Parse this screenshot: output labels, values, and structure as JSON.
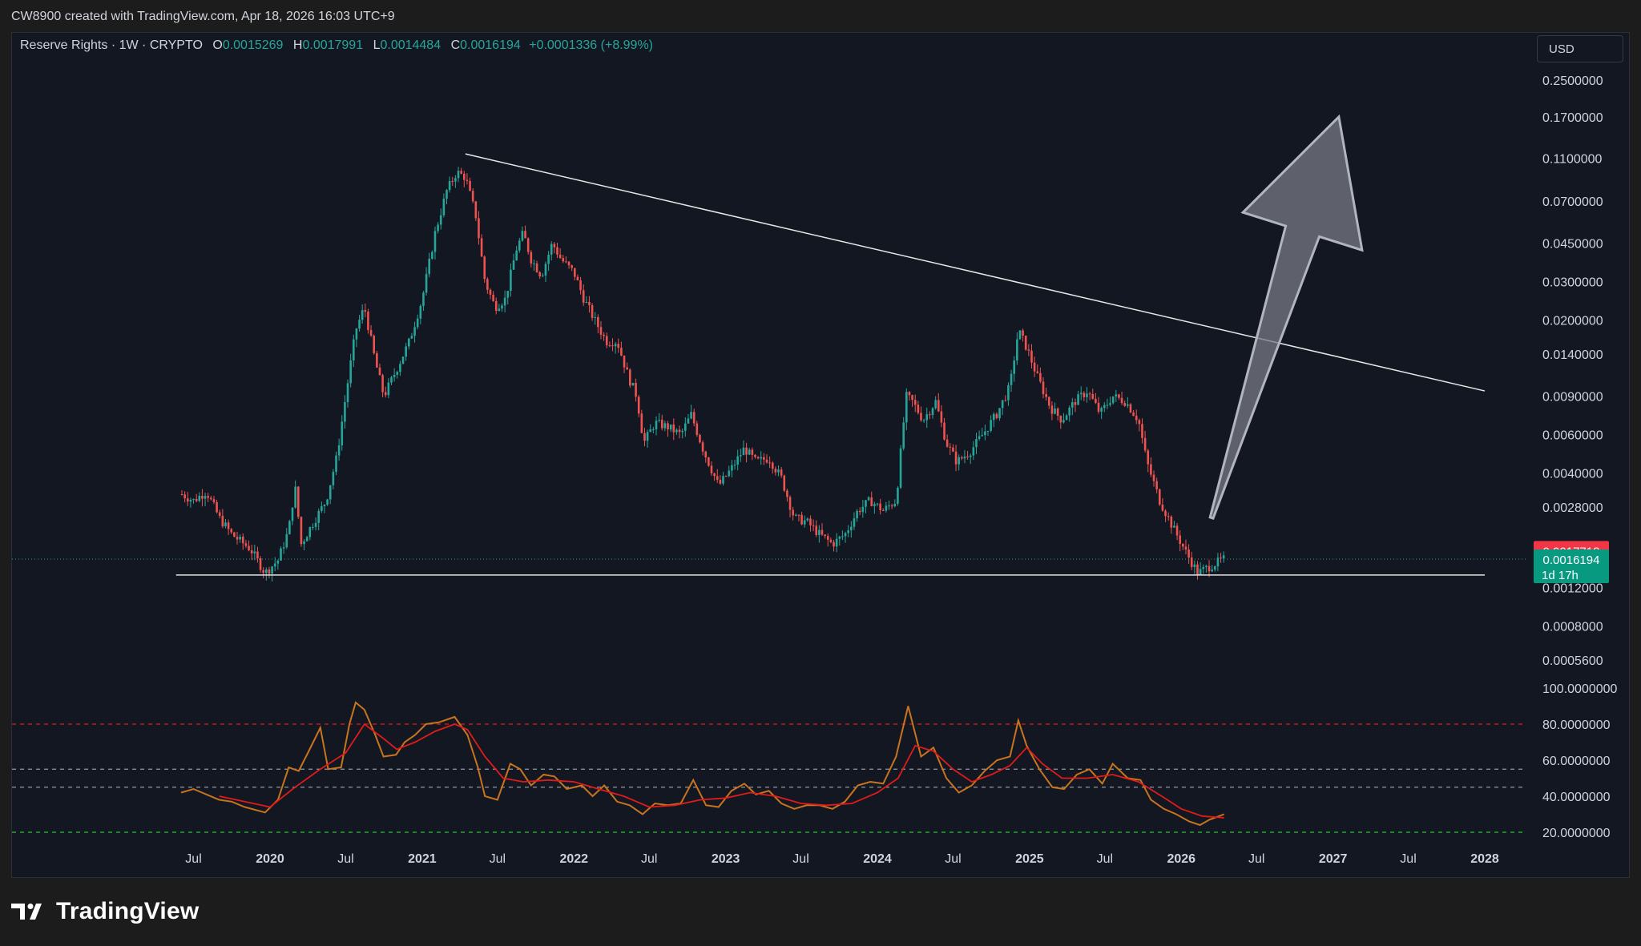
{
  "header": {
    "attribution": "CW8900 created with TradingView.com, Apr 18, 2026 16:03 UTC+9"
  },
  "legend": {
    "symbol": "Reserve Rights · 1W · CRYPTO",
    "o_label": "O",
    "o_value": "0.0015269",
    "h_label": "H",
    "h_value": "0.0017991",
    "l_label": "L",
    "l_value": "0.0014484",
    "c_label": "C",
    "c_value": "0.0016194",
    "change": "+0.0001336 (+8.99%)"
  },
  "currency_button": "USD",
  "footer": {
    "brand": "TradingView"
  },
  "colors": {
    "up": "#26a69a",
    "down": "#ef5350",
    "background": "#131722",
    "rsi": "#c8741e",
    "rsi_ma": "#e01b1b",
    "grid": "#2a2e39",
    "price_tag_red": "#f23645",
    "price_tag_green": "#089981"
  },
  "chart_data": [
    {
      "type": "candlestick",
      "title": "Reserve Rights · 1W · CRYPTO",
      "scale": "log",
      "x_range": [
        "2019-05",
        "2028-03"
      ],
      "ylim": [
        0.00045,
        0.3
      ],
      "x_tick_labels": [
        "Jul",
        "2020",
        "Jul",
        "2021",
        "Jul",
        "2022",
        "Jul",
        "2023",
        "Jul",
        "2024",
        "Jul",
        "2025",
        "Jul",
        "2026",
        "Jul",
        "2027",
        "Jul",
        "2028"
      ],
      "x_tick_dates": [
        "2019-07",
        "2020-01",
        "2020-07",
        "2021-01",
        "2021-07",
        "2022-01",
        "2022-07",
        "2023-01",
        "2023-07",
        "2024-01",
        "2024-07",
        "2025-01",
        "2025-07",
        "2026-01",
        "2026-07",
        "2027-01",
        "2027-07",
        "2028-01"
      ],
      "y_tick_labels": [
        "0.2500000",
        "0.1700000",
        "0.1100000",
        "0.0700000",
        "0.0450000",
        "0.0300000",
        "0.0200000",
        "0.0140000",
        "0.0090000",
        "0.0060000",
        "0.0040000",
        "0.0028000",
        "0.0012000",
        "0.0008000",
        "0.0005600"
      ],
      "y_tick_values": [
        0.25,
        0.17,
        0.11,
        0.07,
        0.045,
        0.03,
        0.02,
        0.014,
        0.009,
        0.006,
        0.004,
        0.0028,
        0.0012,
        0.0008,
        0.00056
      ],
      "price_anchor_points": [
        [
          "2019-06-03",
          0.0032
        ],
        [
          "2019-07-01",
          0.003
        ],
        [
          "2019-08-01",
          0.0033
        ],
        [
          "2019-09-01",
          0.0025
        ],
        [
          "2019-10-01",
          0.0021
        ],
        [
          "2019-11-15",
          0.0018
        ],
        [
          "2019-12-20",
          0.0014
        ],
        [
          "2020-01-20",
          0.0016
        ],
        [
          "2020-02-15",
          0.0022
        ],
        [
          "2020-03-01",
          0.0035
        ],
        [
          "2020-03-16",
          0.0019
        ],
        [
          "2020-04-15",
          0.0024
        ],
        [
          "2020-05-15",
          0.003
        ],
        [
          "2020-06-10",
          0.0048
        ],
        [
          "2020-07-01",
          0.009
        ],
        [
          "2020-07-25",
          0.018
        ],
        [
          "2020-08-15",
          0.023
        ],
        [
          "2020-09-10",
          0.013
        ],
        [
          "2020-10-01",
          0.009
        ],
        [
          "2020-11-01",
          0.012
        ],
        [
          "2020-12-01",
          0.016
        ],
        [
          "2021-01-01",
          0.025
        ],
        [
          "2021-02-01",
          0.05
        ],
        [
          "2021-03-01",
          0.078
        ],
        [
          "2021-03-25",
          0.095
        ],
        [
          "2021-04-15",
          0.09
        ],
        [
          "2021-05-10",
          0.06
        ],
        [
          "2021-06-01",
          0.03
        ],
        [
          "2021-06-25",
          0.023
        ],
        [
          "2021-07-20",
          0.025
        ],
        [
          "2021-08-15",
          0.042
        ],
        [
          "2021-09-01",
          0.05
        ],
        [
          "2021-09-20",
          0.038
        ],
        [
          "2021-10-15",
          0.032
        ],
        [
          "2021-11-10",
          0.045
        ],
        [
          "2021-12-01",
          0.038
        ],
        [
          "2022-01-01",
          0.033
        ],
        [
          "2022-01-25",
          0.025
        ],
        [
          "2022-02-20",
          0.02
        ],
        [
          "2022-03-20",
          0.016
        ],
        [
          "2022-04-15",
          0.016
        ],
        [
          "2022-05-12",
          0.011
        ],
        [
          "2022-06-01",
          0.009
        ],
        [
          "2022-06-18",
          0.0055
        ],
        [
          "2022-07-15",
          0.0068
        ],
        [
          "2022-08-15",
          0.0065
        ],
        [
          "2022-09-15",
          0.006
        ],
        [
          "2022-10-10",
          0.0074
        ],
        [
          "2022-11-10",
          0.005
        ],
        [
          "2022-12-15",
          0.0035
        ],
        [
          "2023-01-15",
          0.0042
        ],
        [
          "2023-02-15",
          0.0052
        ],
        [
          "2023-03-15",
          0.0045
        ],
        [
          "2023-04-15",
          0.0047
        ],
        [
          "2023-05-15",
          0.0038
        ],
        [
          "2023-06-15",
          0.0025
        ],
        [
          "2023-07-15",
          0.0024
        ],
        [
          "2023-08-15",
          0.0021
        ],
        [
          "2023-09-15",
          0.0019
        ],
        [
          "2023-10-15",
          0.0021
        ],
        [
          "2023-11-15",
          0.0027
        ],
        [
          "2023-12-15",
          0.003
        ],
        [
          "2024-01-15",
          0.0027
        ],
        [
          "2024-02-15",
          0.003
        ],
        [
          "2024-03-10",
          0.009
        ],
        [
          "2024-03-25",
          0.0085
        ],
        [
          "2024-04-20",
          0.007
        ],
        [
          "2024-05-20",
          0.0085
        ],
        [
          "2024-06-15",
          0.0055
        ],
        [
          "2024-07-10",
          0.0045
        ],
        [
          "2024-08-10",
          0.005
        ],
        [
          "2024-09-10",
          0.006
        ],
        [
          "2024-10-15",
          0.0075
        ],
        [
          "2024-11-15",
          0.01
        ],
        [
          "2024-12-05",
          0.018
        ],
        [
          "2024-12-25",
          0.015
        ],
        [
          "2025-01-20",
          0.011
        ],
        [
          "2025-02-20",
          0.008
        ],
        [
          "2025-03-20",
          0.007
        ],
        [
          "2025-04-20",
          0.0085
        ],
        [
          "2025-05-20",
          0.0095
        ],
        [
          "2025-06-20",
          0.0075
        ],
        [
          "2025-07-20",
          0.009
        ],
        [
          "2025-08-20",
          0.0085
        ],
        [
          "2025-09-20",
          0.007
        ],
        [
          "2025-10-10",
          0.0045
        ],
        [
          "2025-11-10",
          0.003
        ],
        [
          "2025-12-10",
          0.0023
        ],
        [
          "2026-01-15",
          0.0017
        ],
        [
          "2026-02-10",
          0.0014
        ],
        [
          "2026-03-10",
          0.0015
        ],
        [
          "2026-04-14",
          0.0016194
        ]
      ],
      "drawn_lines": {
        "resistance_trendline": [
          [
            "2021-04-15",
            0.115
          ],
          [
            "2028-01-01",
            0.0095
          ]
        ],
        "support_line": [
          [
            "2019-05-20",
            0.00137
          ],
          [
            "2028-01-01",
            0.00137
          ]
        ]
      },
      "arrow_projection": {
        "from": [
          "2026-03-15",
          0.0025
        ],
        "to": [
          "2027-01-15",
          0.17
        ]
      },
      "price_labels": [
        {
          "value": "0.0017718",
          "color": "#f23645"
        },
        {
          "value": "0.0016194",
          "subtext": "1d 17h",
          "color": "#089981"
        }
      ]
    },
    {
      "type": "line",
      "title": "RSI",
      "ylim": [
        18,
        100
      ],
      "y_tick_labels": [
        "100.0000000",
        "80.0000000",
        "60.0000000",
        "40.0000000",
        "20.0000000"
      ],
      "y_tick_values": [
        100,
        80,
        60,
        40,
        20
      ],
      "reference_lines": [
        {
          "value": 80,
          "color": "#e01b1b"
        },
        {
          "value": 55,
          "color": "#9598a1"
        },
        {
          "value": 45,
          "color": "#9598a1"
        },
        {
          "value": 20,
          "color": "#2cc13a"
        }
      ],
      "series": [
        {
          "color": "#c8741e",
          "points": [
            [
              "2019-06-01",
              42
            ],
            [
              "2019-07-01",
              44
            ],
            [
              "2019-08-01",
              41
            ],
            [
              "2019-09-01",
              38
            ],
            [
              "2019-10-01",
              37
            ],
            [
              "2019-11-01",
              34
            ],
            [
              "2019-12-20",
              31
            ],
            [
              "2020-01-20",
              38
            ],
            [
              "2020-02-15",
              56
            ],
            [
              "2020-03-10",
              54
            ],
            [
              "2020-04-01",
              64
            ],
            [
              "2020-05-01",
              78
            ],
            [
              "2020-05-20",
              55
            ],
            [
              "2020-06-20",
              56
            ],
            [
              "2020-07-10",
              80
            ],
            [
              "2020-07-25",
              92
            ],
            [
              "2020-08-15",
              88
            ],
            [
              "2020-09-10",
              74
            ],
            [
              "2020-09-30",
              62
            ],
            [
              "2020-10-30",
              63
            ],
            [
              "2020-11-20",
              70
            ],
            [
              "2020-12-15",
              74
            ],
            [
              "2021-01-10",
              80
            ],
            [
              "2021-02-10",
              81
            ],
            [
              "2021-03-20",
              84
            ],
            [
              "2021-04-20",
              74
            ],
            [
              "2021-05-15",
              56
            ],
            [
              "2021-06-01",
              40
            ],
            [
              "2021-07-01",
              38
            ],
            [
              "2021-08-01",
              58
            ],
            [
              "2021-08-25",
              55
            ],
            [
              "2021-09-20",
              46
            ],
            [
              "2021-10-20",
              52
            ],
            [
              "2021-11-15",
              51
            ],
            [
              "2021-12-15",
              44
            ],
            [
              "2022-01-20",
              46
            ],
            [
              "2022-02-15",
              40
            ],
            [
              "2022-03-15",
              46
            ],
            [
              "2022-04-15",
              37
            ],
            [
              "2022-05-15",
              35
            ],
            [
              "2022-06-15",
              30
            ],
            [
              "2022-07-15",
              36
            ],
            [
              "2022-08-15",
              35
            ],
            [
              "2022-09-15",
              36
            ],
            [
              "2022-10-15",
              49
            ],
            [
              "2022-11-15",
              35
            ],
            [
              "2022-12-15",
              34
            ],
            [
              "2023-01-15",
              43
            ],
            [
              "2023-02-15",
              47
            ],
            [
              "2023-03-15",
              41
            ],
            [
              "2023-04-15",
              43
            ],
            [
              "2023-05-15",
              36
            ],
            [
              "2023-06-15",
              33
            ],
            [
              "2023-07-15",
              35
            ],
            [
              "2023-08-15",
              35
            ],
            [
              "2023-09-15",
              33
            ],
            [
              "2023-10-15",
              37
            ],
            [
              "2023-11-15",
              46
            ],
            [
              "2023-12-15",
              48
            ],
            [
              "2024-01-15",
              47
            ],
            [
              "2024-02-15",
              62
            ],
            [
              "2024-03-15",
              90
            ],
            [
              "2024-04-15",
              62
            ],
            [
              "2024-05-15",
              67
            ],
            [
              "2024-06-15",
              50
            ],
            [
              "2024-07-15",
              42
            ],
            [
              "2024-08-15",
              46
            ],
            [
              "2024-09-15",
              54
            ],
            [
              "2024-10-15",
              60
            ],
            [
              "2024-11-15",
              62
            ],
            [
              "2024-12-05",
              82
            ],
            [
              "2024-12-25",
              68
            ],
            [
              "2025-01-25",
              55
            ],
            [
              "2025-02-25",
              45
            ],
            [
              "2025-03-25",
              44
            ],
            [
              "2025-04-25",
              52
            ],
            [
              "2025-05-25",
              55
            ],
            [
              "2025-06-25",
              47
            ],
            [
              "2025-07-20",
              58
            ],
            [
              "2025-08-25",
              50
            ],
            [
              "2025-09-25",
              49
            ],
            [
              "2025-10-20",
              38
            ],
            [
              "2025-11-20",
              33
            ],
            [
              "2025-12-20",
              30
            ],
            [
              "2026-01-20",
              26
            ],
            [
              "2026-02-15",
              24
            ],
            [
              "2026-03-10",
              27
            ],
            [
              "2026-04-14",
              30
            ]
          ]
        },
        {
          "color": "#e01b1b",
          "points": [
            [
              "2019-09-01",
              40
            ],
            [
              "2019-11-01",
              37
            ],
            [
              "2020-01-01",
              34
            ],
            [
              "2020-03-01",
              45
            ],
            [
              "2020-05-01",
              55
            ],
            [
              "2020-07-01",
              64
            ],
            [
              "2020-08-15",
              80
            ],
            [
              "2020-09-30",
              72
            ],
            [
              "2020-11-01",
              66
            ],
            [
              "2020-12-15",
              70
            ],
            [
              "2021-02-01",
              76
            ],
            [
              "2021-03-20",
              80
            ],
            [
              "2021-04-20",
              77
            ],
            [
              "2021-06-01",
              62
            ],
            [
              "2021-07-15",
              50
            ],
            [
              "2021-09-01",
              48
            ],
            [
              "2021-11-01",
              49
            ],
            [
              "2022-01-01",
              48
            ],
            [
              "2022-03-01",
              44
            ],
            [
              "2022-05-01",
              40
            ],
            [
              "2022-07-01",
              34
            ],
            [
              "2022-09-01",
              35
            ],
            [
              "2022-11-01",
              38
            ],
            [
              "2023-01-01",
              39
            ],
            [
              "2023-03-01",
              42
            ],
            [
              "2023-05-01",
              40
            ],
            [
              "2023-07-01",
              36
            ],
            [
              "2023-09-01",
              35
            ],
            [
              "2023-11-01",
              36
            ],
            [
              "2024-01-01",
              42
            ],
            [
              "2024-02-20",
              50
            ],
            [
              "2024-04-01",
              68
            ],
            [
              "2024-05-15",
              65
            ],
            [
              "2024-07-01",
              55
            ],
            [
              "2024-08-15",
              48
            ],
            [
              "2024-10-01",
              52
            ],
            [
              "2024-11-15",
              57
            ],
            [
              "2024-12-25",
              67
            ],
            [
              "2025-02-01",
              58
            ],
            [
              "2025-03-20",
              50
            ],
            [
              "2025-05-20",
              50
            ],
            [
              "2025-07-20",
              52
            ],
            [
              "2025-09-20",
              48
            ],
            [
              "2025-11-15",
              40
            ],
            [
              "2026-01-01",
              33
            ],
            [
              "2026-02-20",
              29
            ],
            [
              "2026-04-14",
              28
            ]
          ]
        }
      ]
    }
  ]
}
